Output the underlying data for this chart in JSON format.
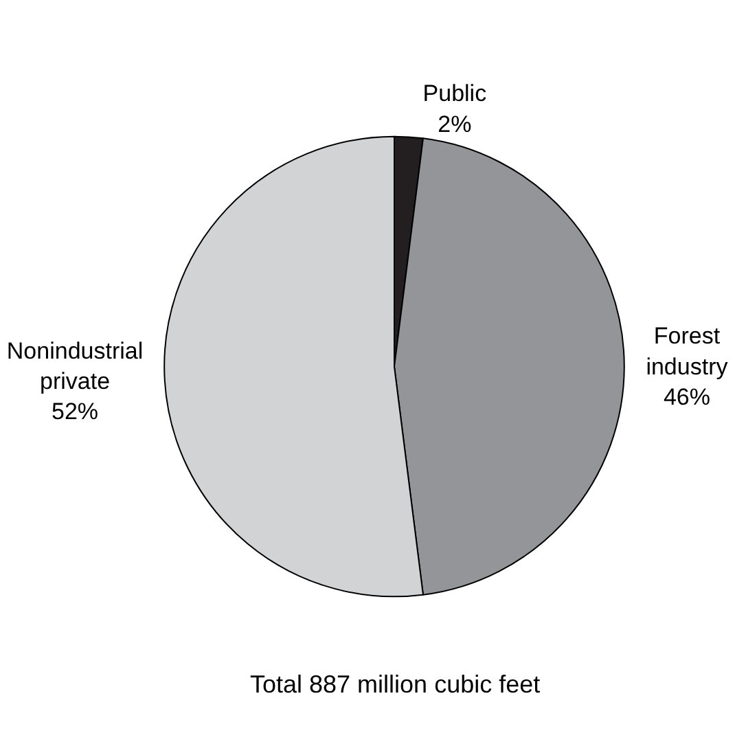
{
  "chart_data": {
    "type": "pie",
    "categories": [
      "Public",
      "Forest industry",
      "Nonindustrial private"
    ],
    "values": [
      2,
      46,
      52
    ],
    "value_labels": [
      "2%",
      "46%",
      "52%"
    ],
    "colors": [
      "#231f20",
      "#939598",
      "#d1d3d4"
    ],
    "annotations": [
      "Total 887 million cubic feet"
    ],
    "legend": false
  }
}
